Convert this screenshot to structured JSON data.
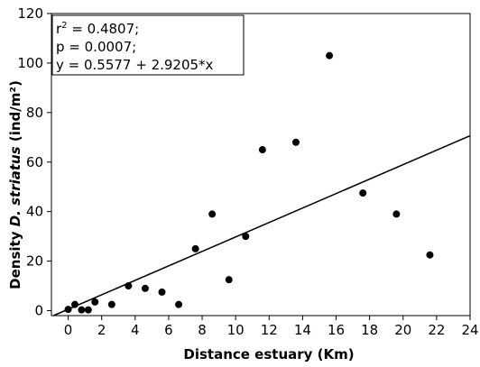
{
  "chart_data": {
    "type": "scatter",
    "title": "",
    "xlabel": "Distance estuary (Km)",
    "ylabel_prefix": "Density ",
    "ylabel_species": "D. striatus",
    "ylabel_units": " (ind/m²)",
    "xlim": [
      -1,
      24
    ],
    "ylim": [
      -2,
      120
    ],
    "xticks": [
      "0",
      "2",
      "4",
      "6",
      "8",
      "10",
      "12",
      "14",
      "16",
      "18",
      "20",
      "22",
      "24"
    ],
    "yticks": [
      "0",
      "20",
      "40",
      "60",
      "80",
      "100",
      "120"
    ],
    "grid": false,
    "points": [
      {
        "x": 0.0,
        "y": 0.5
      },
      {
        "x": 0.4,
        "y": 2.5
      },
      {
        "x": 0.8,
        "y": 0.3
      },
      {
        "x": 1.2,
        "y": 0.3
      },
      {
        "x": 1.6,
        "y": 3.5
      },
      {
        "x": 2.6,
        "y": 2.5
      },
      {
        "x": 3.6,
        "y": 10
      },
      {
        "x": 4.6,
        "y": 9
      },
      {
        "x": 5.6,
        "y": 7.5
      },
      {
        "x": 6.6,
        "y": 2.5
      },
      {
        "x": 7.6,
        "y": 25
      },
      {
        "x": 8.6,
        "y": 39
      },
      {
        "x": 9.6,
        "y": 12.5
      },
      {
        "x": 10.6,
        "y": 30
      },
      {
        "x": 11.6,
        "y": 65
      },
      {
        "x": 13.6,
        "y": 68
      },
      {
        "x": 15.6,
        "y": 103
      },
      {
        "x": 17.6,
        "y": 47.5
      },
      {
        "x": 19.6,
        "y": 39
      },
      {
        "x": 21.6,
        "y": 22.5
      }
    ],
    "regression": {
      "intercept": 0.5577,
      "slope": 2.9205
    },
    "annotation": {
      "r2_prefix": "r",
      "r2_sup": "2",
      "r2_value": " = 0.4807;",
      "p_line": "p = 0.0007;",
      "eq_line": "y = 0.5577 + 2.9205*x"
    }
  }
}
